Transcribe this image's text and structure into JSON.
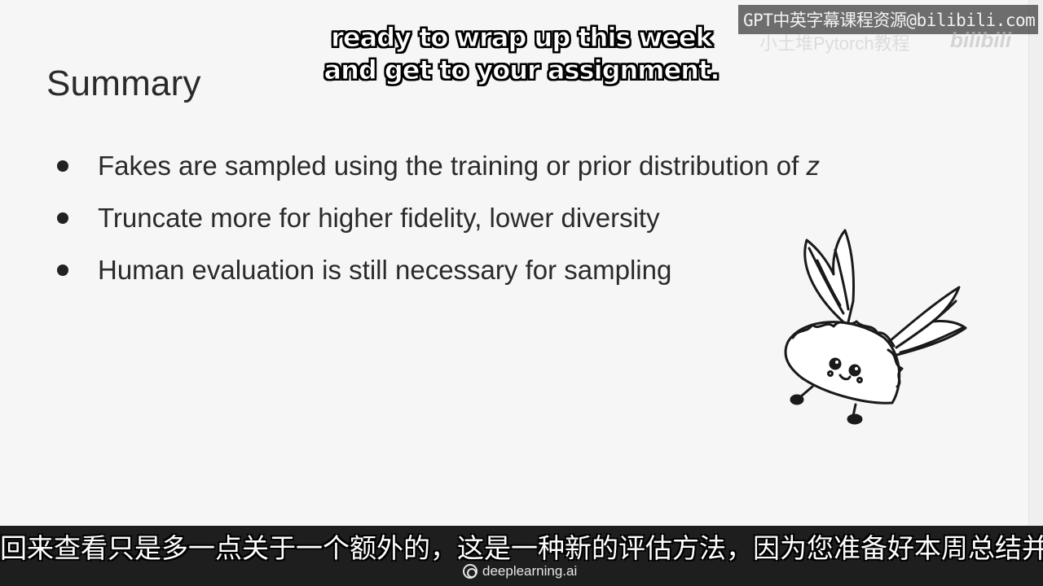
{
  "slide": {
    "title": "Summary",
    "bullets": [
      {
        "text": "Fakes are sampled using the training or prior distribution of ",
        "emphasis": "z"
      },
      {
        "text": "Truncate more for higher fidelity, lower diversity",
        "emphasis": ""
      },
      {
        "text": "Human evaluation is still necessary for sampling",
        "emphasis": ""
      }
    ],
    "mascot_icon": "flying-taco-icon"
  },
  "subtitles": {
    "english_line1": "ready to wrap up this week",
    "english_line2": "and get to your assignment.",
    "chinese": "回来查看只是多一点关于一个额外的，这是一种新的评估方法，因为您准备好本周总结并完成"
  },
  "watermark": {
    "text": "GPT中英字幕课程资源@bilibili.com",
    "sub_text": "小土堆Pytorch教程",
    "bili_logo": "bilibili"
  },
  "branding": {
    "logo_icon": "deeplearning-logo-icon",
    "text": "deeplearning.ai"
  },
  "colors": {
    "background": "#f6f6f6",
    "text": "#2a2a2a",
    "band": "#1e1e1e"
  }
}
